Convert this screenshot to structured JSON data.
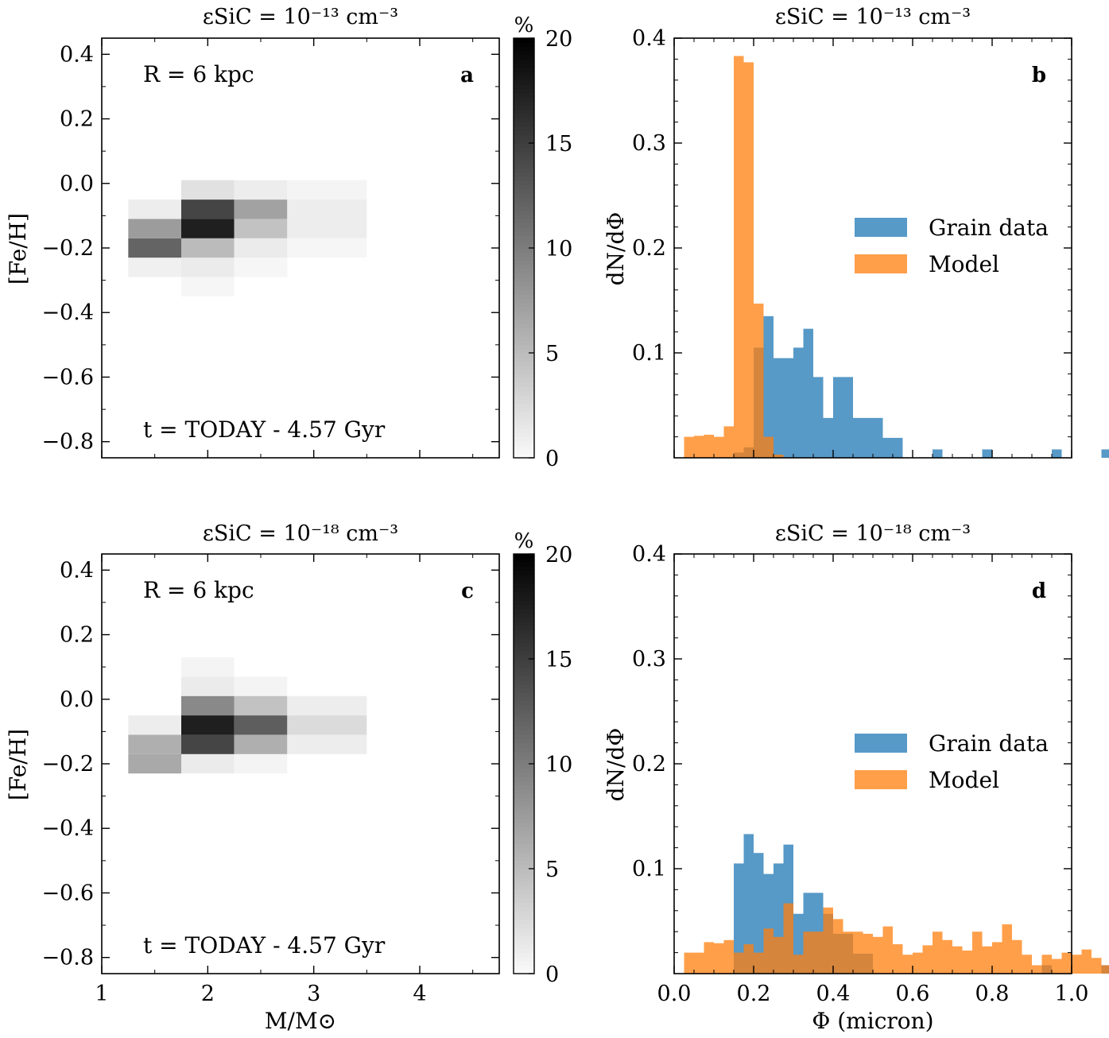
{
  "colors": {
    "grain": "#1f77b4",
    "model": "#ff7f0e",
    "axis": "#000000"
  },
  "chart_data": [
    {
      "id": "a",
      "type": "heatmap",
      "panel_label": "a",
      "title": "εSiC = 10⁻¹³ cm⁻³",
      "annotation_r": "R = 6 kpc",
      "annotation_t": "t = TODAY - 4.57 Gyr",
      "xlabel": "",
      "ylabel": "[Fe/H]",
      "xlim": [
        1,
        4.75
      ],
      "ylim": [
        -0.85,
        0.45
      ],
      "xticks": [],
      "yticks": [
        -0.8,
        -0.6,
        -0.4,
        -0.2,
        0.0,
        0.2,
        0.4
      ],
      "ytick_labels": [
        "−0.8",
        "−0.6",
        "−0.4",
        "−0.2",
        "0.0",
        "0.2",
        "0.4"
      ],
      "x_edges": [
        1.25,
        1.75,
        2.25,
        2.75,
        3.5
      ],
      "y_edges": [
        -0.35,
        -0.29,
        -0.23,
        -0.17,
        -0.11,
        -0.05,
        0.01
      ],
      "cells": [
        {
          "x": 0,
          "y": 1,
          "v": 0.8
        },
        {
          "x": 0,
          "y": 2,
          "v": 12.0
        },
        {
          "x": 0,
          "y": 3,
          "v": 7.5
        },
        {
          "x": 0,
          "y": 4,
          "v": 1.0
        },
        {
          "x": 1,
          "y": 0,
          "v": 0.3
        },
        {
          "x": 1,
          "y": 1,
          "v": 1.2
        },
        {
          "x": 1,
          "y": 2,
          "v": 5.0
        },
        {
          "x": 1,
          "y": 3,
          "v": 17.5
        },
        {
          "x": 1,
          "y": 4,
          "v": 14.5
        },
        {
          "x": 1,
          "y": 5,
          "v": 2.0
        },
        {
          "x": 2,
          "y": 1,
          "v": 0.3
        },
        {
          "x": 2,
          "y": 2,
          "v": 1.2
        },
        {
          "x": 2,
          "y": 3,
          "v": 4.5
        },
        {
          "x": 2,
          "y": 4,
          "v": 7.0
        },
        {
          "x": 2,
          "y": 5,
          "v": 1.0
        },
        {
          "x": 3,
          "y": 2,
          "v": 0.3
        },
        {
          "x": 3,
          "y": 3,
          "v": 1.0
        },
        {
          "x": 3,
          "y": 4,
          "v": 1.0
        },
        {
          "x": 3,
          "y": 5,
          "v": 0.5
        }
      ],
      "colorbar": {
        "label": "%",
        "range": [
          0,
          20
        ],
        "ticks": [
          0,
          5,
          10,
          15,
          20
        ]
      }
    },
    {
      "id": "b",
      "type": "bar",
      "panel_label": "b",
      "title": "εSiC = 10⁻¹³ cm⁻³",
      "xlabel": "",
      "ylabel": "dN/dΦ",
      "xlim": [
        0.0,
        1.0
      ],
      "ylim": [
        0.0,
        0.4
      ],
      "xticks": [],
      "yticks": [
        0.1,
        0.2,
        0.3,
        0.4
      ],
      "ytick_labels": [
        "0.1",
        "0.2",
        "0.3",
        "0.4"
      ],
      "legend": {
        "position": "center-right",
        "entries": [
          "Grain data",
          "Model"
        ]
      },
      "series": [
        {
          "name": "Grain data",
          "bin_left": 0.0,
          "bin_width": 0.025,
          "values": [
            0,
            0,
            0,
            0,
            0,
            0,
            0.005,
            0.01,
            0.105,
            0.135,
            0.095,
            0.095,
            0.105,
            0.123,
            0.077,
            0.038,
            0.077,
            0.077,
            0.038,
            0.038,
            0.038,
            0.019,
            0.019,
            0,
            0,
            0,
            0.008,
            0,
            0,
            0,
            0,
            0.008,
            0,
            0,
            0,
            0,
            0,
            0,
            0.008,
            0,
            0,
            0,
            0,
            0.008,
            0,
            0,
            0,
            0,
            0,
            0
          ]
        },
        {
          "name": "Model",
          "bin_left": 0.0,
          "bin_width": 0.025,
          "values": [
            0,
            0.02,
            0.021,
            0.022,
            0.02,
            0.03,
            0.383,
            0.377,
            0.147,
            0.02,
            0.003,
            0,
            0,
            0,
            0,
            0,
            0,
            0,
            0,
            0,
            0,
            0,
            0,
            0,
            0,
            0,
            0,
            0,
            0,
            0,
            0,
            0,
            0,
            0,
            0,
            0,
            0,
            0,
            0,
            0,
            0,
            0,
            0,
            0,
            0,
            0,
            0,
            0,
            0,
            0
          ]
        }
      ]
    },
    {
      "id": "c",
      "type": "heatmap",
      "panel_label": "c",
      "title": "εSiC = 10⁻¹⁸ cm⁻³",
      "annotation_r": "R = 6 kpc",
      "annotation_t": "t = TODAY - 4.57 Gyr",
      "xlabel": "M/M⊙",
      "ylabel": "[Fe/H]",
      "xlim": [
        1,
        4.75
      ],
      "ylim": [
        -0.85,
        0.45
      ],
      "xticks": [
        1,
        2,
        3,
        4
      ],
      "xtick_labels": [
        "1",
        "2",
        "3",
        "4"
      ],
      "yticks": [
        -0.8,
        -0.6,
        -0.4,
        -0.2,
        0.0,
        0.2,
        0.4
      ],
      "ytick_labels": [
        "−0.8",
        "−0.6",
        "−0.4",
        "−0.2",
        "0.0",
        "0.2",
        "0.4"
      ],
      "x_edges": [
        1.25,
        1.75,
        2.25,
        2.75,
        3.5
      ],
      "y_edges": [
        -0.23,
        -0.17,
        -0.11,
        -0.05,
        0.01,
        0.07,
        0.13
      ],
      "cells": [
        {
          "x": 0,
          "y": 0,
          "v": 6.5
        },
        {
          "x": 0,
          "y": 1,
          "v": 6.0
        },
        {
          "x": 0,
          "y": 2,
          "v": 1.0
        },
        {
          "x": 1,
          "y": 0,
          "v": 1.2
        },
        {
          "x": 1,
          "y": 1,
          "v": 14.5
        },
        {
          "x": 1,
          "y": 2,
          "v": 17.5
        },
        {
          "x": 1,
          "y": 3,
          "v": 9.0
        },
        {
          "x": 1,
          "y": 4,
          "v": 1.2
        },
        {
          "x": 1,
          "y": 5,
          "v": 0.5
        },
        {
          "x": 2,
          "y": 0,
          "v": 0.5
        },
        {
          "x": 2,
          "y": 1,
          "v": 6.0
        },
        {
          "x": 2,
          "y": 2,
          "v": 12.5
        },
        {
          "x": 2,
          "y": 3,
          "v": 4.5
        },
        {
          "x": 2,
          "y": 4,
          "v": 0.5
        },
        {
          "x": 3,
          "y": 1,
          "v": 1.0
        },
        {
          "x": 3,
          "y": 2,
          "v": 2.5
        },
        {
          "x": 3,
          "y": 3,
          "v": 1.0
        }
      ],
      "colorbar": {
        "label": "%",
        "range": [
          0,
          20
        ],
        "ticks": [
          0,
          5,
          10,
          15,
          20
        ]
      }
    },
    {
      "id": "d",
      "type": "bar",
      "panel_label": "d",
      "title": "εSiC = 10⁻¹⁸ cm⁻³",
      "xlabel": "Φ (micron)",
      "ylabel": "dN/dΦ",
      "xlim": [
        0.0,
        1.0
      ],
      "ylim": [
        0.0,
        0.4
      ],
      "xticks": [
        0.0,
        0.2,
        0.4,
        0.6,
        0.8,
        1.0
      ],
      "xtick_labels": [
        "0.0",
        "0.2",
        "0.4",
        "0.6",
        "0.8",
        "1.0"
      ],
      "yticks": [
        0.1,
        0.2,
        0.3,
        0.4
      ],
      "ytick_labels": [
        "0.1",
        "0.2",
        "0.3",
        "0.4"
      ],
      "legend": {
        "position": "center-right",
        "entries": [
          "Grain data",
          "Model"
        ]
      },
      "series": [
        {
          "name": "Grain data",
          "bin_left": 0.0,
          "bin_width": 0.025,
          "values": [
            0,
            0,
            0,
            0,
            0,
            0,
            0.105,
            0.133,
            0.115,
            0.095,
            0.105,
            0.123,
            0.057,
            0.077,
            0.077,
            0.057,
            0.038,
            0.038,
            0.019,
            0.019,
            0,
            0,
            0,
            0,
            0,
            0,
            0,
            0,
            0,
            0,
            0,
            0,
            0,
            0,
            0,
            0,
            0,
            0.008,
            0,
            0,
            0,
            0,
            0,
            0.008,
            0,
            0,
            0,
            0,
            0,
            0
          ]
        },
        {
          "name": "Model",
          "bin_left": 0.0,
          "bin_width": 0.025,
          "values": [
            0,
            0.02,
            0.02,
            0.03,
            0.029,
            0.032,
            0.02,
            0.028,
            0.02,
            0.043,
            0.035,
            0.067,
            0.018,
            0.04,
            0.04,
            0.063,
            0.052,
            0.04,
            0.04,
            0.038,
            0.035,
            0.045,
            0.028,
            0.018,
            0.02,
            0.027,
            0.04,
            0.032,
            0.026,
            0.022,
            0.04,
            0.026,
            0.03,
            0.047,
            0.032,
            0.018,
            0.008,
            0.018,
            0.014,
            0.02,
            0.018,
            0.023,
            0.015,
            0.008,
            0.02,
            0.016,
            0.01,
            0.015,
            0.003,
            0.003
          ]
        }
      ]
    }
  ]
}
